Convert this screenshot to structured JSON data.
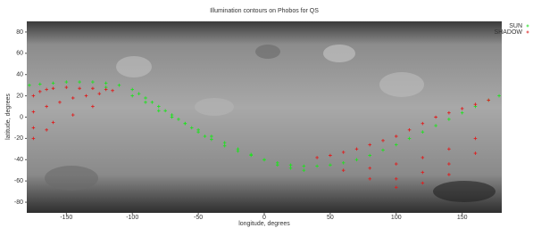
{
  "chart_data": {
    "type": "scatter",
    "title": "Illumination contours on Phobos for QS",
    "x_label": "longitude, degrees",
    "y_label": "latitude, degrees",
    "xlim": [
      -180,
      180
    ],
    "ylim": [
      -90,
      90
    ],
    "xticks": [
      -150,
      -100,
      -50,
      0,
      50,
      100,
      150
    ],
    "yticks": [
      -80,
      -60,
      -40,
      -20,
      0,
      20,
      40,
      60,
      80
    ],
    "legend": "top-right",
    "series": [
      {
        "name": "SUN",
        "color": "#22e022",
        "x": [
          -178,
          -170,
          -160,
          -150,
          -140,
          -130,
          -120,
          -110,
          -100,
          -95,
          -90,
          -85,
          -80,
          -75,
          -70,
          -65,
          -60,
          -55,
          -50,
          -45,
          -40,
          -30,
          -20,
          -10,
          0,
          10,
          20,
          30,
          40,
          50,
          60,
          70,
          80,
          90,
          100,
          110,
          120,
          130,
          140,
          150,
          160,
          170,
          178,
          -120,
          -100,
          -90,
          -80,
          -70,
          -60,
          -50,
          -40,
          -30,
          -20,
          -10,
          0,
          10,
          20,
          30
        ],
        "y": [
          30,
          31,
          32,
          33,
          33,
          33,
          32,
          30,
          26,
          22,
          18,
          14,
          10,
          6,
          2,
          -2,
          -6,
          -10,
          -14,
          -18,
          -21,
          -27,
          -32,
          -36,
          -40,
          -43,
          -45,
          -46,
          -46,
          -45,
          -43,
          -40,
          -36,
          -31,
          -26,
          -20,
          -14,
          -8,
          -2,
          4,
          10,
          16,
          20,
          28,
          20,
          14,
          6,
          0,
          -6,
          -12,
          -18,
          -24,
          -30,
          -35,
          -40,
          -45,
          -48,
          -50
        ]
      },
      {
        "name": "SHADOW",
        "color": "#dd2020",
        "x": [
          -175,
          -170,
          -165,
          -160,
          -150,
          -140,
          -130,
          -120,
          -115,
          -175,
          -165,
          -155,
          -145,
          -135,
          -125,
          -175,
          -160,
          -145,
          -130,
          -175,
          -165,
          40,
          50,
          60,
          70,
          80,
          90,
          100,
          110,
          120,
          130,
          140,
          150,
          160,
          170,
          60,
          80,
          100,
          120,
          140,
          160,
          80,
          100,
          120,
          140,
          160,
          100,
          120,
          140
        ],
        "y": [
          20,
          24,
          26,
          27,
          28,
          27,
          27,
          26,
          25,
          5,
          10,
          14,
          18,
          20,
          22,
          -10,
          -5,
          2,
          10,
          -20,
          -12,
          -38,
          -36,
          -33,
          -30,
          -26,
          -22,
          -18,
          -12,
          -6,
          0,
          4,
          8,
          12,
          16,
          -50,
          -48,
          -44,
          -38,
          -30,
          -20,
          -58,
          -58,
          -52,
          -44,
          -34,
          -66,
          -62,
          -54
        ]
      }
    ]
  }
}
